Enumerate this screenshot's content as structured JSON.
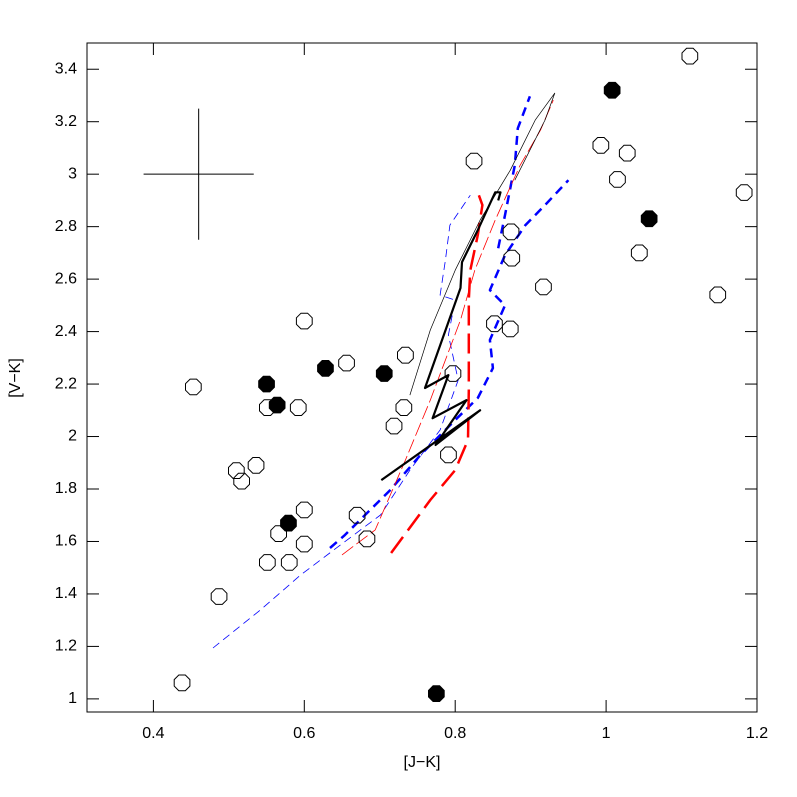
{
  "chart_data": {
    "type": "scatter",
    "xlabel": "[J−K]",
    "ylabel": "[V−K]",
    "xlim": [
      0.312,
      1.2
    ],
    "ylim": [
      0.95,
      3.5
    ],
    "xticks": [
      0.4,
      0.6,
      0.8,
      1,
      1.2
    ],
    "yticks": [
      1,
      1.2,
      1.4,
      1.6,
      1.8,
      2,
      2.2,
      2.4,
      2.6,
      2.8,
      3,
      3.2,
      3.4
    ],
    "error_bar": {
      "x": 0.46,
      "y": 3,
      "xerr": 0.073,
      "yerr": 0.25,
      "color": "#000000"
    },
    "series": [
      {
        "type": "line",
        "color": "#0000ff",
        "width": 2.5,
        "dash": "9 6",
        "x": [
          0.634,
          0.654,
          0.714,
          0.754,
          0.8,
          0.83,
          0.85,
          0.846,
          0.866,
          0.846,
          0.866,
          0.893,
          0.919,
          0.95
        ],
        "values": [
          1.575,
          1.625,
          1.796,
          1.93,
          2.063,
          2.147,
          2.261,
          2.368,
          2.5,
          2.558,
          2.691,
          2.806,
          2.882,
          2.977
        ]
      },
      {
        "type": "line",
        "color": "#0000ff",
        "width": 2.5,
        "dash": "9 6",
        "x": [
          0.857,
          0.866,
          0.879,
          0.883,
          0.899
        ],
        "values": [
          2.718,
          2.844,
          3.034,
          3.175,
          3.297
        ]
      },
      {
        "type": "line",
        "color": "#0000ff",
        "width": 0.8,
        "dash": "8 5",
        "x": [
          0.479,
          0.542,
          0.595,
          0.648,
          0.701,
          0.74,
          0.78,
          0.804,
          0.791,
          0.8,
          0.78,
          0.787,
          0.793,
          0.82
        ],
        "values": [
          1.194,
          1.339,
          1.472,
          1.587,
          1.701,
          1.872,
          2.025,
          2.215,
          2.387,
          2.52,
          2.539,
          2.672,
          2.806,
          2.92
        ]
      },
      {
        "type": "line",
        "color": "#ff0000",
        "width": 2.5,
        "dash": "20 8",
        "x": [
          0.715,
          0.767,
          0.8,
          0.817,
          0.818,
          0.818,
          0.82,
          0.83,
          0.836,
          0.83
        ],
        "values": [
          1.556,
          1.758,
          1.872,
          1.987,
          2.177,
          2.52,
          2.634,
          2.768,
          2.882,
          2.931
        ]
      },
      {
        "type": "line",
        "color": "#ff0000",
        "width": 0.8,
        "dash": "14 4",
        "x": [
          0.65,
          0.694,
          0.734,
          0.767,
          0.807,
          0.826,
          0.853,
          0.886,
          0.913,
          0.93
        ],
        "values": [
          1.549,
          1.644,
          1.91,
          2.139,
          2.444,
          2.634,
          2.825,
          3.034,
          3.168,
          3.282
        ]
      },
      {
        "type": "line",
        "color": "#000000",
        "width": 2.2,
        "dash": "none",
        "x": [
          0.702,
          0.833,
          0.774,
          0.815,
          0.77,
          0.791,
          0.76,
          0.807,
          0.809,
          0.83,
          0.853,
          0.86,
          0.857
        ],
        "values": [
          1.834,
          2.1,
          1.968,
          2.139,
          2.07,
          2.234,
          2.185,
          2.566,
          2.665,
          2.787,
          2.931,
          2.931,
          2.9
        ]
      },
      {
        "type": "line",
        "color": "#000000",
        "width": 0.7,
        "dash": "none",
        "x": [
          0.74,
          0.767,
          0.8,
          0.833,
          0.873,
          0.906,
          0.932,
          0.919,
          0.879
        ],
        "values": [
          2.158,
          2.406,
          2.634,
          2.825,
          3.015,
          3.206,
          3.309,
          3.206,
          2.977
        ]
      },
      {
        "type": "scatter",
        "marker": "open",
        "color": "#000000",
        "x": [
          0.438,
          0.453,
          0.487,
          0.51,
          0.517,
          0.536,
          0.551,
          0.592,
          0.6,
          0.551,
          0.566,
          0.58,
          0.6,
          0.6,
          0.656,
          0.67,
          0.683,
          0.734,
          0.732,
          0.719,
          0.825,
          0.797,
          0.791,
          0.852,
          0.873,
          0.874,
          0.875,
          0.917,
          0.993,
          1.015,
          1.028,
          1.044,
          1.111,
          1.148,
          1.183
        ],
        "values": [
          1.061,
          2.189,
          1.39,
          1.87,
          1.83,
          1.89,
          2.11,
          2.11,
          2.44,
          1.52,
          1.63,
          1.52,
          1.72,
          1.59,
          2.28,
          1.7,
          1.61,
          2.31,
          2.11,
          2.04,
          3.05,
          2.24,
          1.93,
          2.43,
          2.41,
          2.78,
          2.68,
          2.57,
          3.11,
          2.98,
          3.08,
          2.7,
          3.45,
          2.54,
          2.93
        ]
      },
      {
        "type": "scatter",
        "marker": "filled",
        "color": "#000000",
        "x": [
          0.55,
          0.564,
          0.628,
          0.706,
          0.579,
          0.775,
          1.008,
          1.057
        ],
        "values": [
          2.2,
          2.12,
          2.26,
          2.24,
          1.67,
          1.02,
          3.32,
          2.83
        ]
      }
    ]
  }
}
